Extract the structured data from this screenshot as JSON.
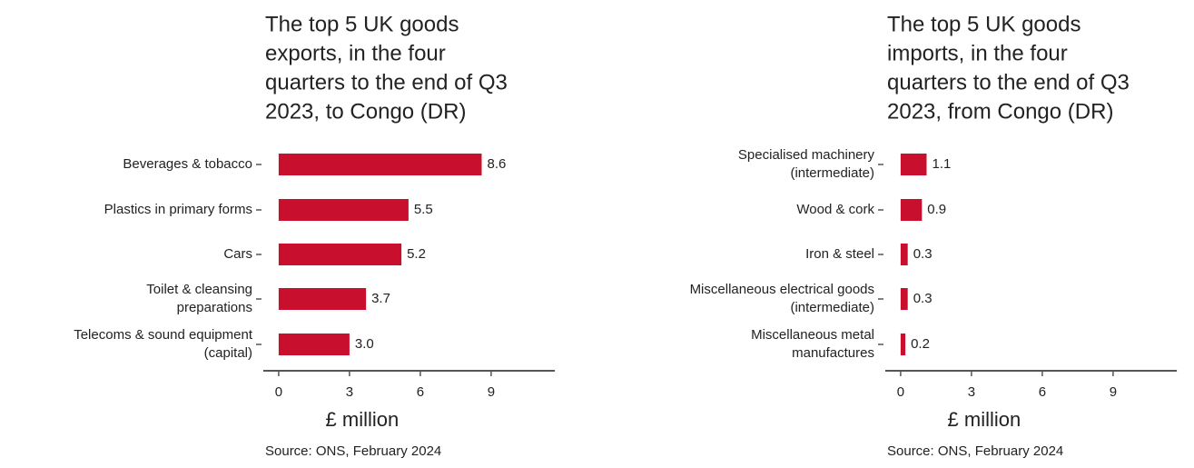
{
  "chart_data": [
    {
      "type": "barh",
      "title": [
        "The top 5 UK goods",
        "exports, in the four",
        "quarters to the end of Q3",
        "2023, to Congo (DR)"
      ],
      "categories": [
        [
          "Beverages & tobacco"
        ],
        [
          "Plastics in primary forms"
        ],
        [
          "Cars"
        ],
        [
          "Toilet & cleansing",
          "preparations"
        ],
        [
          "Telecoms & sound equipment",
          "(capital)"
        ]
      ],
      "values": [
        8.6,
        5.5,
        5.2,
        3.7,
        3.0
      ],
      "value_labels": [
        "8.6",
        "5.5",
        "5.2",
        "3.7",
        "3.0"
      ],
      "color": "#c8102e",
      "xlim": [
        -0.65,
        11.7
      ],
      "xticks": [
        0,
        3,
        6,
        9
      ],
      "xlabel": "£ million",
      "source": "Source: ONS, February 2024"
    },
    {
      "type": "barh",
      "title": [
        "The top 5 UK goods",
        "imports, in the four",
        "quarters to the end of Q3",
        "2023, from Congo (DR)"
      ],
      "categories": [
        [
          "Specialised machinery",
          "(intermediate)"
        ],
        [
          "Wood & cork"
        ],
        [
          "Iron & steel"
        ],
        [
          "Miscellaneous electrical goods",
          "(intermediate)"
        ],
        [
          "Miscellaneous metal",
          "manufactures"
        ]
      ],
      "values": [
        1.1,
        0.9,
        0.3,
        0.3,
        0.2
      ],
      "value_labels": [
        "1.1",
        "0.9",
        "0.3",
        "0.3",
        "0.2"
      ],
      "color": "#c8102e",
      "xlim": [
        -0.65,
        11.7
      ],
      "xticks": [
        0,
        3,
        6,
        9
      ],
      "xlabel": "£ million",
      "source": "Source: ONS, February 2024"
    }
  ]
}
